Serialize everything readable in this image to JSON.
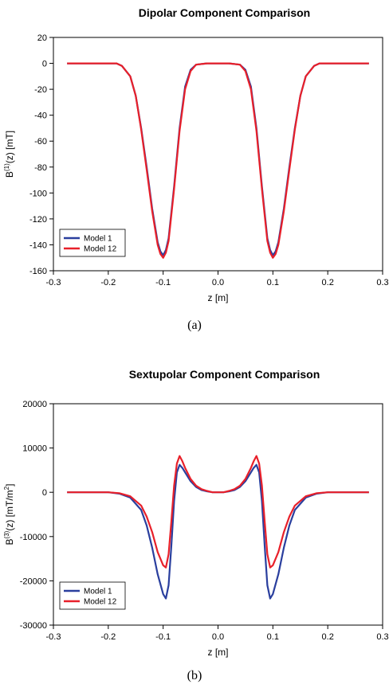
{
  "chart_data": [
    {
      "type": "line",
      "title": "Dipolar Component Comparison",
      "xlabel": "z [m]",
      "ylabel_base": "B",
      "ylabel_sup": "(1)",
      "ylabel_rest": "(z) [mT]",
      "xlim": [
        -0.3,
        0.3
      ],
      "ylim": [
        -160,
        20
      ],
      "xticks": [
        "-0.3",
        "-0.2",
        "-0.1",
        "0.0",
        "0.1",
        "0.2",
        "0.3"
      ],
      "yticks": [
        "20",
        "0",
        "-20",
        "-40",
        "-60",
        "-80",
        "-100",
        "-120",
        "-140",
        "-160"
      ],
      "legend_position": "bottom-left",
      "caption": "(a)",
      "series": [
        {
          "name": "Model 1",
          "color": "#2a3f9e",
          "x": [
            -0.275,
            -0.2,
            -0.185,
            -0.175,
            -0.16,
            -0.15,
            -0.14,
            -0.13,
            -0.12,
            -0.11,
            -0.105,
            -0.1,
            -0.095,
            -0.09,
            -0.08,
            -0.07,
            -0.06,
            -0.05,
            -0.04,
            -0.02,
            0.0,
            0.02,
            0.04,
            0.05,
            0.06,
            0.07,
            0.08,
            0.09,
            0.095,
            0.1,
            0.105,
            0.11,
            0.12,
            0.13,
            0.14,
            0.15,
            0.16,
            0.175,
            0.185,
            0.2,
            0.275
          ],
          "y": [
            0,
            0,
            0,
            -2,
            -10,
            -25,
            -50,
            -80,
            -112,
            -138,
            -145,
            -148,
            -144,
            -135,
            -95,
            -50,
            -18,
            -5,
            -1,
            0,
            0,
            0,
            -1,
            -5,
            -18,
            -50,
            -95,
            -135,
            -144,
            -148,
            -145,
            -138,
            -112,
            -80,
            -50,
            -25,
            -10,
            -2,
            0,
            0,
            0
          ]
        },
        {
          "name": "Model 12",
          "color": "#e8202a",
          "x": [
            -0.275,
            -0.2,
            -0.185,
            -0.175,
            -0.16,
            -0.15,
            -0.14,
            -0.13,
            -0.12,
            -0.11,
            -0.105,
            -0.1,
            -0.095,
            -0.09,
            -0.08,
            -0.07,
            -0.06,
            -0.05,
            -0.04,
            -0.02,
            0.0,
            0.02,
            0.04,
            0.05,
            0.06,
            0.07,
            0.08,
            0.09,
            0.095,
            0.1,
            0.105,
            0.11,
            0.12,
            0.13,
            0.14,
            0.15,
            0.16,
            0.175,
            0.185,
            0.2,
            0.275
          ],
          "y": [
            0,
            0,
            0,
            -2,
            -10,
            -25,
            -51,
            -82,
            -114,
            -140,
            -147,
            -150,
            -146,
            -137,
            -97,
            -52,
            -20,
            -6,
            -1,
            0,
            0,
            0,
            -1,
            -6,
            -20,
            -52,
            -97,
            -137,
            -146,
            -150,
            -147,
            -140,
            -114,
            -82,
            -51,
            -25,
            -10,
            -2,
            0,
            0,
            0
          ]
        }
      ]
    },
    {
      "type": "line",
      "title": "Sextupolar Component Comparison",
      "xlabel": "z [m]",
      "ylabel_base": "B",
      "ylabel_sup": "(3)",
      "ylabel_rest": "(z) [mT/m",
      "ylabel_sup2": "2",
      "ylabel_end": "]",
      "xlim": [
        -0.3,
        0.3
      ],
      "ylim": [
        -30000,
        20000
      ],
      "xticks": [
        "-0.3",
        "-0.2",
        "-0.1",
        "0.0",
        "0.1",
        "0.2",
        "0.3"
      ],
      "yticks": [
        "20000",
        "10000",
        "0",
        "-10000",
        "-20000",
        "-30000"
      ],
      "legend_position": "bottom-left",
      "caption": "(b)",
      "series": [
        {
          "name": "Model 1",
          "color": "#2a3f9e",
          "x": [
            -0.275,
            -0.2,
            -0.18,
            -0.16,
            -0.14,
            -0.13,
            -0.12,
            -0.11,
            -0.1,
            -0.095,
            -0.09,
            -0.085,
            -0.08,
            -0.075,
            -0.07,
            -0.065,
            -0.06,
            -0.05,
            -0.04,
            -0.03,
            -0.02,
            -0.01,
            0.0,
            0.01,
            0.02,
            0.03,
            0.04,
            0.05,
            0.06,
            0.065,
            0.07,
            0.075,
            0.08,
            0.085,
            0.09,
            0.095,
            0.1,
            0.11,
            0.12,
            0.13,
            0.14,
            0.16,
            0.18,
            0.2,
            0.275
          ],
          "y": [
            0,
            0,
            -300,
            -1200,
            -4000,
            -7500,
            -12500,
            -18500,
            -23000,
            -24000,
            -21000,
            -12000,
            -2000,
            4500,
            6200,
            5500,
            4500,
            2500,
            1200,
            500,
            200,
            0,
            0,
            0,
            200,
            500,
            1200,
            2500,
            4500,
            5500,
            6200,
            4500,
            -2000,
            -12000,
            -21000,
            -24000,
            -23000,
            -18500,
            -12500,
            -7500,
            -4000,
            -1200,
            -300,
            0,
            0
          ]
        },
        {
          "name": "Model 12",
          "color": "#e8202a",
          "x": [
            -0.275,
            -0.2,
            -0.18,
            -0.16,
            -0.14,
            -0.13,
            -0.12,
            -0.11,
            -0.1,
            -0.095,
            -0.09,
            -0.085,
            -0.08,
            -0.075,
            -0.07,
            -0.065,
            -0.06,
            -0.05,
            -0.04,
            -0.03,
            -0.02,
            -0.01,
            0.0,
            0.01,
            0.02,
            0.03,
            0.04,
            0.05,
            0.06,
            0.065,
            0.07,
            0.075,
            0.08,
            0.085,
            0.09,
            0.095,
            0.1,
            0.11,
            0.12,
            0.13,
            0.14,
            0.16,
            0.18,
            0.2,
            0.275
          ],
          "y": [
            0,
            0,
            -200,
            -900,
            -3000,
            -5500,
            -9000,
            -13500,
            -16500,
            -17000,
            -14000,
            -6500,
            1500,
            6500,
            8200,
            7000,
            5500,
            3000,
            1500,
            700,
            300,
            0,
            0,
            0,
            300,
            700,
            1500,
            3000,
            5500,
            7000,
            8200,
            6500,
            1500,
            -6500,
            -14000,
            -17000,
            -16500,
            -13500,
            -9000,
            -5500,
            -3000,
            -900,
            -200,
            0,
            0
          ]
        }
      ]
    }
  ]
}
